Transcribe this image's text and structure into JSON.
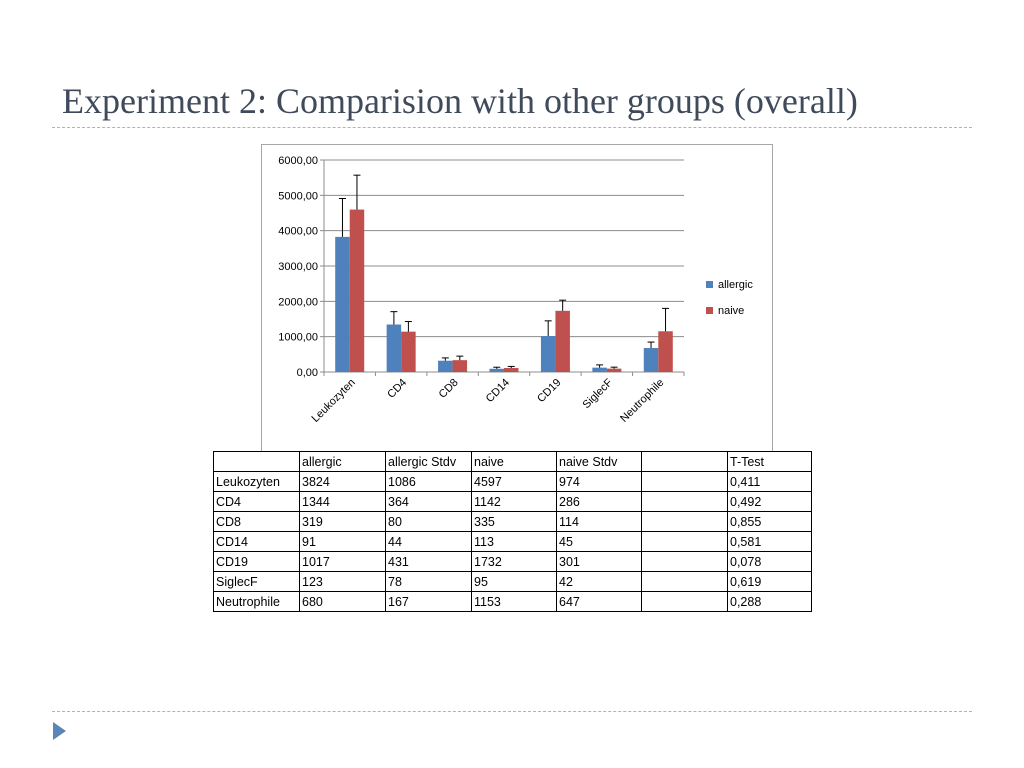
{
  "slide": {
    "title": "Experiment 2: Comparision with other groups (overall)"
  },
  "colors": {
    "allergic": "#4f81bd",
    "naive": "#c0504d",
    "gridline": "#8c8c8c",
    "rule": "#a9b4c2",
    "nav_arrow": "#5b85b8"
  },
  "chart_data": {
    "type": "bar",
    "categories": [
      "Leukozyten",
      "CD4",
      "CD8",
      "CD14",
      "CD19",
      "SiglecF",
      "Neutrophile"
    ],
    "series": [
      {
        "name": "allergic",
        "values": [
          3824,
          1344,
          319,
          91,
          1017,
          123,
          680
        ],
        "errors": [
          1086,
          364,
          80,
          44,
          431,
          78,
          167
        ]
      },
      {
        "name": "naive",
        "values": [
          4597,
          1142,
          335,
          113,
          1732,
          95,
          1153
        ],
        "errors": [
          974,
          286,
          114,
          45,
          301,
          42,
          647
        ]
      }
    ],
    "ylim": [
      0,
      6000
    ],
    "yticks": [
      0,
      1000,
      2000,
      3000,
      4000,
      5000,
      6000
    ],
    "ytick_labels": [
      "0,00",
      "1000,00",
      "2000,00",
      "3000,00",
      "4000,00",
      "5000,00",
      "6000,00"
    ],
    "grid": true,
    "legend": "right",
    "error_bars": "positive"
  },
  "table": {
    "headers": [
      "",
      "allergic",
      "allergic Stdv",
      "naive",
      "naive Stdv",
      "",
      "T-Test"
    ],
    "rows": [
      [
        "Leukozyten",
        "3824",
        "1086",
        "4597",
        "974",
        "",
        "0,411"
      ],
      [
        "CD4",
        "1344",
        "364",
        "1142",
        "286",
        "",
        "0,492"
      ],
      [
        "CD8",
        "319",
        "80",
        "335",
        "114",
        "",
        "0,855"
      ],
      [
        "CD14",
        "91",
        "44",
        "113",
        "45",
        "",
        "0,581"
      ],
      [
        "CD19",
        "1017",
        "431",
        "1732",
        "301",
        "",
        "0,078"
      ],
      [
        "SiglecF",
        "123",
        "78",
        "95",
        "42",
        "",
        "0,619"
      ],
      [
        "Neutrophile",
        "680",
        "167",
        "1153",
        "647",
        "",
        "0,288"
      ]
    ]
  }
}
